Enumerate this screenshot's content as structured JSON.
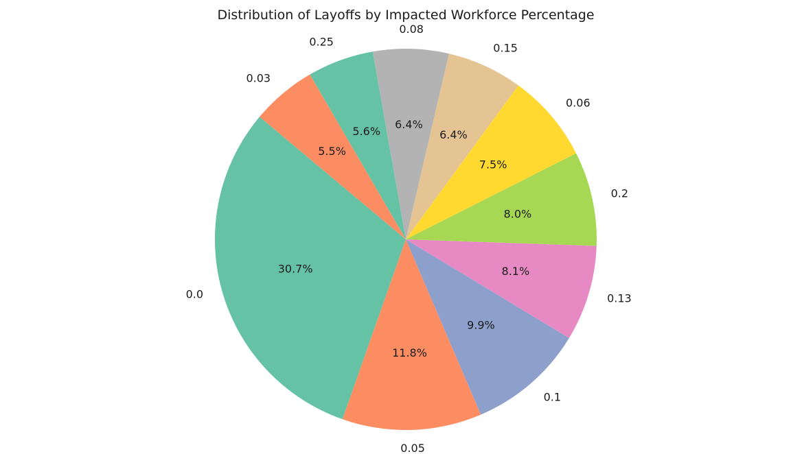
{
  "chart_data": {
    "type": "pie",
    "title": "Distribution of Layoffs by Impacted Workforce Percentage",
    "categories": [
      "0.0",
      "0.05",
      "0.1",
      "0.13",
      "0.2",
      "0.06",
      "0.15",
      "0.08",
      "0.25",
      "0.03"
    ],
    "values": [
      30.7,
      11.8,
      9.9,
      8.1,
      8.0,
      7.5,
      6.4,
      6.4,
      5.6,
      5.5
    ],
    "percent_labels": [
      "30.7%",
      "11.8%",
      "9.9%",
      "8.1%",
      "8.0%",
      "7.5%",
      "6.4%",
      "6.4%",
      "5.6%",
      "5.5%"
    ],
    "colors": [
      "#66c2a5",
      "#fc8d62",
      "#8da0cb",
      "#e78ac3",
      "#a6d854",
      "#ffd92f",
      "#e5c494",
      "#b3b3b3",
      "#66c2a5",
      "#fc8d62"
    ],
    "start_angle_deg": 140,
    "direction": "counterclockwise",
    "legend": "none"
  }
}
